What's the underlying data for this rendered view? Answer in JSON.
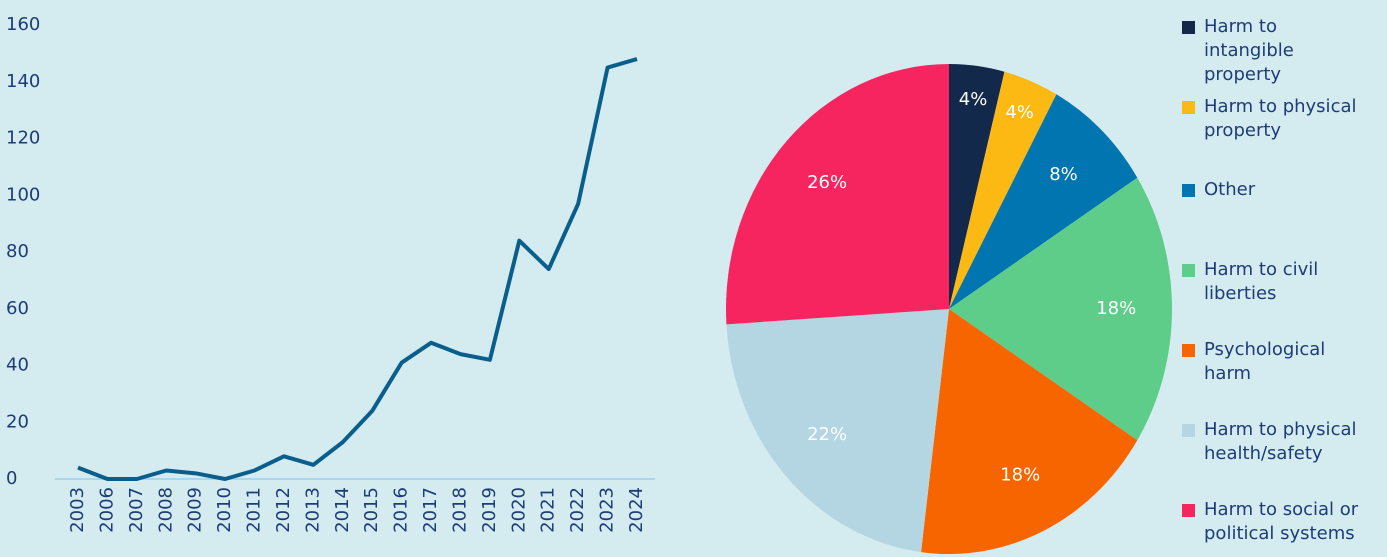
{
  "chart_data": [
    {
      "type": "line",
      "categories": [
        "2003",
        "2006",
        "2007",
        "2008",
        "2009",
        "2010",
        "2011",
        "2012",
        "2013",
        "2014",
        "2015",
        "2016",
        "2017",
        "2018",
        "2019",
        "2020",
        "2021",
        "2022",
        "2023",
        "2024"
      ],
      "series": [
        {
          "color": "#0a5e8c",
          "values": [
            4,
            0,
            0,
            3,
            2,
            0,
            3,
            8,
            5,
            13,
            24,
            41,
            48,
            44,
            42,
            84,
            74,
            97,
            145,
            148
          ]
        }
      ],
      "ylim": [
        0,
        160
      ],
      "yticks": [
        0,
        20,
        40,
        60,
        80,
        100,
        120,
        140,
        160
      ]
    },
    {
      "type": "pie",
      "categories": [
        "Harm to intangible property",
        "Harm to physical property",
        "Other",
        "Harm to civil liberties",
        "Psychological harm",
        "Harm to physical health/safety",
        "Harm to social or political systems"
      ],
      "values": [
        4,
        4,
        8,
        18,
        18,
        22,
        26
      ],
      "value_labels": [
        "4%",
        "4%",
        "8%",
        "18%",
        "18%",
        "22%",
        "26%"
      ],
      "colors": [
        "#13294b",
        "#fdb913",
        "#0075b0",
        "#5ecd8a",
        "#f76501",
        "#b4d6e2",
        "#f6245f"
      ]
    }
  ]
}
